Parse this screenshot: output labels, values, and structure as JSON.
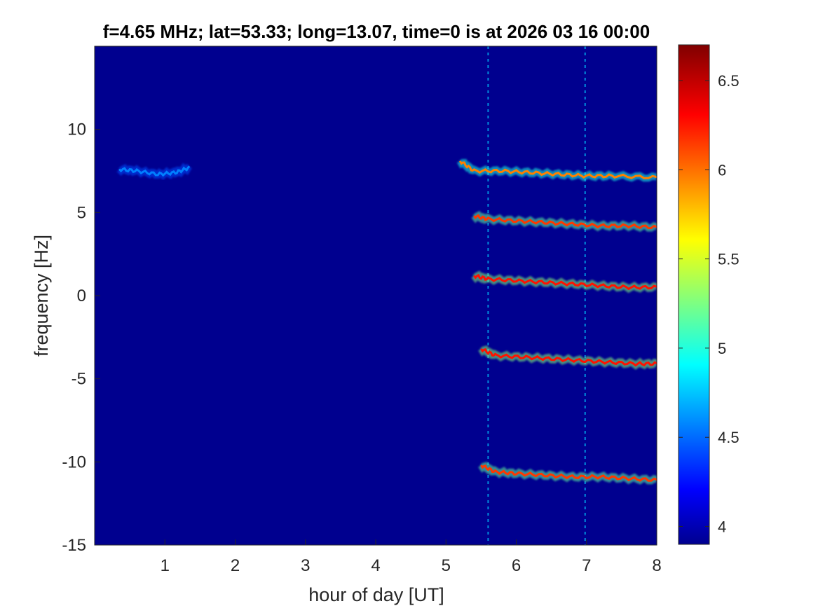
{
  "chart_data": {
    "type": "heatmap",
    "title": "f=4.65 MHz;  lat=53.33; long=13.07, time=0 is at 2026 03 16 00:00",
    "xlabel": "hour of day [UT]",
    "ylabel": "frequency [Hz]",
    "xlim": [
      0,
      8
    ],
    "ylim": [
      -15,
      15
    ],
    "x_ticks": [
      "1",
      "2",
      "3",
      "4",
      "5",
      "6",
      "7",
      "8"
    ],
    "y_ticks": [
      "-15",
      "-10",
      "-5",
      "0",
      "5",
      "10"
    ],
    "y_tick_values": [
      -15,
      -10,
      -5,
      0,
      5,
      10
    ],
    "x_tick_values": [
      1,
      2,
      3,
      4,
      5,
      6,
      7,
      8
    ],
    "colorbar": {
      "colormap": "jet",
      "range": [
        3.9,
        6.7
      ],
      "ticks": [
        "4",
        "4.5",
        "5",
        "5.5",
        "6",
        "6.5"
      ],
      "tick_values": [
        4,
        4.5,
        5,
        5.5,
        6,
        6.5
      ]
    },
    "background_color": "#00008f",
    "traces": [
      {
        "x": [
          0.35,
          0.6,
          0.9,
          1.15,
          1.35
        ],
        "y": [
          7.6,
          7.5,
          7.3,
          7.4,
          7.7
        ],
        "level": 4.6
      },
      {
        "x": [
          5.2,
          5.4,
          5.8,
          6.2,
          6.6,
          7.0,
          7.4,
          8.0
        ],
        "y": [
          8.1,
          7.5,
          7.5,
          7.4,
          7.3,
          7.2,
          7.2,
          7.1
        ],
        "level": 6.0
      },
      {
        "x": [
          5.4,
          5.6,
          6.0,
          6.4,
          6.8,
          7.2,
          7.6,
          8.0
        ],
        "y": [
          4.8,
          4.6,
          4.5,
          4.4,
          4.3,
          4.2,
          4.2,
          4.1
        ],
        "level": 6.2
      },
      {
        "x": [
          5.4,
          5.6,
          6.0,
          6.4,
          6.8,
          7.2,
          7.6,
          8.0
        ],
        "y": [
          1.2,
          1.0,
          0.9,
          0.8,
          0.7,
          0.6,
          0.5,
          0.5
        ],
        "level": 6.3
      },
      {
        "x": [
          5.5,
          5.7,
          6.1,
          6.5,
          6.9,
          7.3,
          7.7,
          8.0
        ],
        "y": [
          -3.2,
          -3.6,
          -3.7,
          -3.8,
          -3.9,
          -4.0,
          -4.1,
          -4.1
        ],
        "level": 6.3
      },
      {
        "x": [
          5.5,
          5.7,
          6.0,
          6.4,
          6.8,
          7.2,
          7.6,
          8.0
        ],
        "y": [
          -10.2,
          -10.6,
          -10.7,
          -10.8,
          -10.9,
          -10.9,
          -11.0,
          -11.1
        ],
        "level": 6.2
      }
    ],
    "vertical_lines": [
      5.6,
      6.98
    ]
  }
}
